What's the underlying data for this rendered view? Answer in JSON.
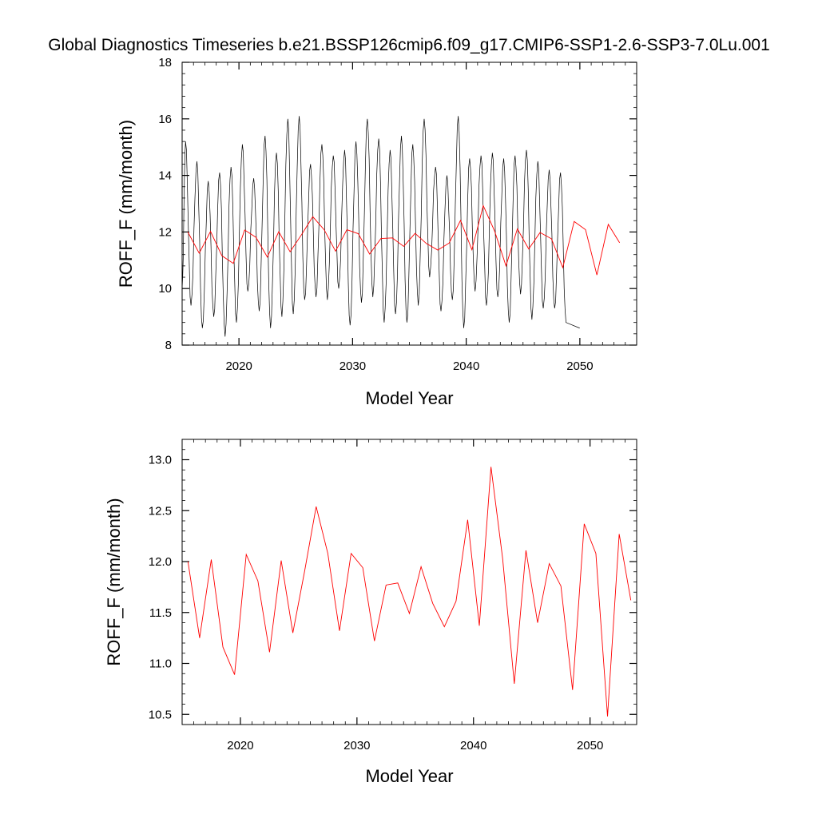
{
  "chart_data": [
    {
      "type": "line",
      "title": "Global Diagnostics Timeseries b.e21.BSSP126cmip6.f09_g17.CMIP6-SSP1-2.6-SSP3-7.0Lu.001",
      "xlabel": "Model Year",
      "ylabel": "ROFF_F (mm/month)",
      "xlim": [
        2015,
        2055
      ],
      "ylim": [
        8,
        18
      ],
      "x_ticks": [
        2020,
        2030,
        2040,
        2050
      ],
      "y_ticks": [
        8,
        10,
        12,
        14,
        16,
        18
      ],
      "grid": false,
      "legend": "none",
      "series": [
        {
          "color": "#000000",
          "kind": "monthly",
          "annual_peaks": [
            15.2,
            14.5,
            13.8,
            14.1,
            14.3,
            15.1,
            13.9,
            15.4,
            14.8,
            16.0,
            16.1,
            14.4,
            15.1,
            14.7,
            14.9,
            15.2,
            16.0,
            15.3,
            14.9,
            15.4,
            15.1,
            16.0,
            14.3,
            14.0,
            16.1,
            14.6,
            14.7,
            14.8,
            14.6,
            14.7,
            14.9,
            14.5,
            14.2,
            14.1
          ],
          "annual_troughs": [
            9.4,
            8.6,
            9.0,
            8.3,
            8.8,
            9.9,
            9.2,
            8.6,
            9.0,
            9.1,
            9.6,
            9.7,
            9.6,
            10.0,
            8.7,
            9.5,
            9.7,
            8.8,
            9.1,
            8.8,
            9.4,
            10.4,
            9.2,
            9.6,
            8.6,
            9.9,
            9.4,
            9.7,
            8.8,
            9.8,
            8.9,
            9.3,
            9.3,
            8.8
          ]
        },
        {
          "color": "#ff0000",
          "kind": "annual",
          "x": [
            2015.5,
            2016.5,
            2017.5,
            2018.5,
            2019.5,
            2020.5,
            2021.5,
            2022.5,
            2023.5,
            2024.5,
            2025.5,
            2026.5,
            2027.5,
            2028.5,
            2029.5,
            2030.5,
            2031.5,
            2032.5,
            2033.5,
            2034.5,
            2035.5,
            2036.5,
            2037.5,
            2038.5,
            2039.5,
            2040.5,
            2041.5,
            2042.5,
            2043.5,
            2044.5,
            2045.5,
            2046.5,
            2047.5,
            2048.5,
            2049.5,
            2050.5,
            2051.5,
            2052.5,
            2053.5
          ],
          "values": [
            12.0,
            11.25,
            12.02,
            11.16,
            10.89,
            12.07,
            11.81,
            11.11,
            12.01,
            11.3,
            11.9,
            12.54,
            12.08,
            11.32,
            12.08,
            11.94,
            11.22,
            11.77,
            11.79,
            11.49,
            11.95,
            11.59,
            11.36,
            11.61,
            12.41,
            11.37,
            12.93,
            12.03,
            10.8,
            12.11,
            11.4,
            11.98,
            11.76,
            10.74,
            12.37,
            12.08,
            10.48,
            12.27,
            11.62
          ]
        }
      ]
    },
    {
      "type": "line",
      "xlabel": "Model Year",
      "ylabel": "ROFF_F (mm/month)",
      "xlim": [
        2015,
        2054
      ],
      "ylim": [
        10.4,
        13.2
      ],
      "x_ticks": [
        2020,
        2030,
        2040,
        2050
      ],
      "y_ticks": [
        10.5,
        11.0,
        11.5,
        12.0,
        12.5,
        13.0
      ],
      "y_tick_labels": [
        "10.5",
        "11.0",
        "11.5",
        "12.0",
        "12.5",
        "13.0"
      ],
      "grid": false,
      "legend": "none",
      "series": [
        {
          "color": "#ff0000",
          "x": [
            2015.5,
            2016.5,
            2017.5,
            2018.5,
            2019.5,
            2020.5,
            2021.5,
            2022.5,
            2023.5,
            2024.5,
            2025.5,
            2026.5,
            2027.5,
            2028.5,
            2029.5,
            2030.5,
            2031.5,
            2032.5,
            2033.5,
            2034.5,
            2035.5,
            2036.5,
            2037.5,
            2038.5,
            2039.5,
            2040.5,
            2041.5,
            2042.5,
            2043.5,
            2044.5,
            2045.5,
            2046.5,
            2047.5,
            2048.5,
            2049.5,
            2050.5,
            2051.5,
            2052.5,
            2053.5
          ],
          "values": [
            12.0,
            11.25,
            12.02,
            11.16,
            10.89,
            12.07,
            11.81,
            11.11,
            12.01,
            11.3,
            11.9,
            12.54,
            12.08,
            11.32,
            12.08,
            11.94,
            11.22,
            11.77,
            11.79,
            11.49,
            11.95,
            11.59,
            11.36,
            11.61,
            12.41,
            11.37,
            12.93,
            12.03,
            10.8,
            12.11,
            11.4,
            11.98,
            11.76,
            10.74,
            12.37,
            12.08,
            10.48,
            12.27,
            11.62
          ]
        }
      ]
    }
  ]
}
